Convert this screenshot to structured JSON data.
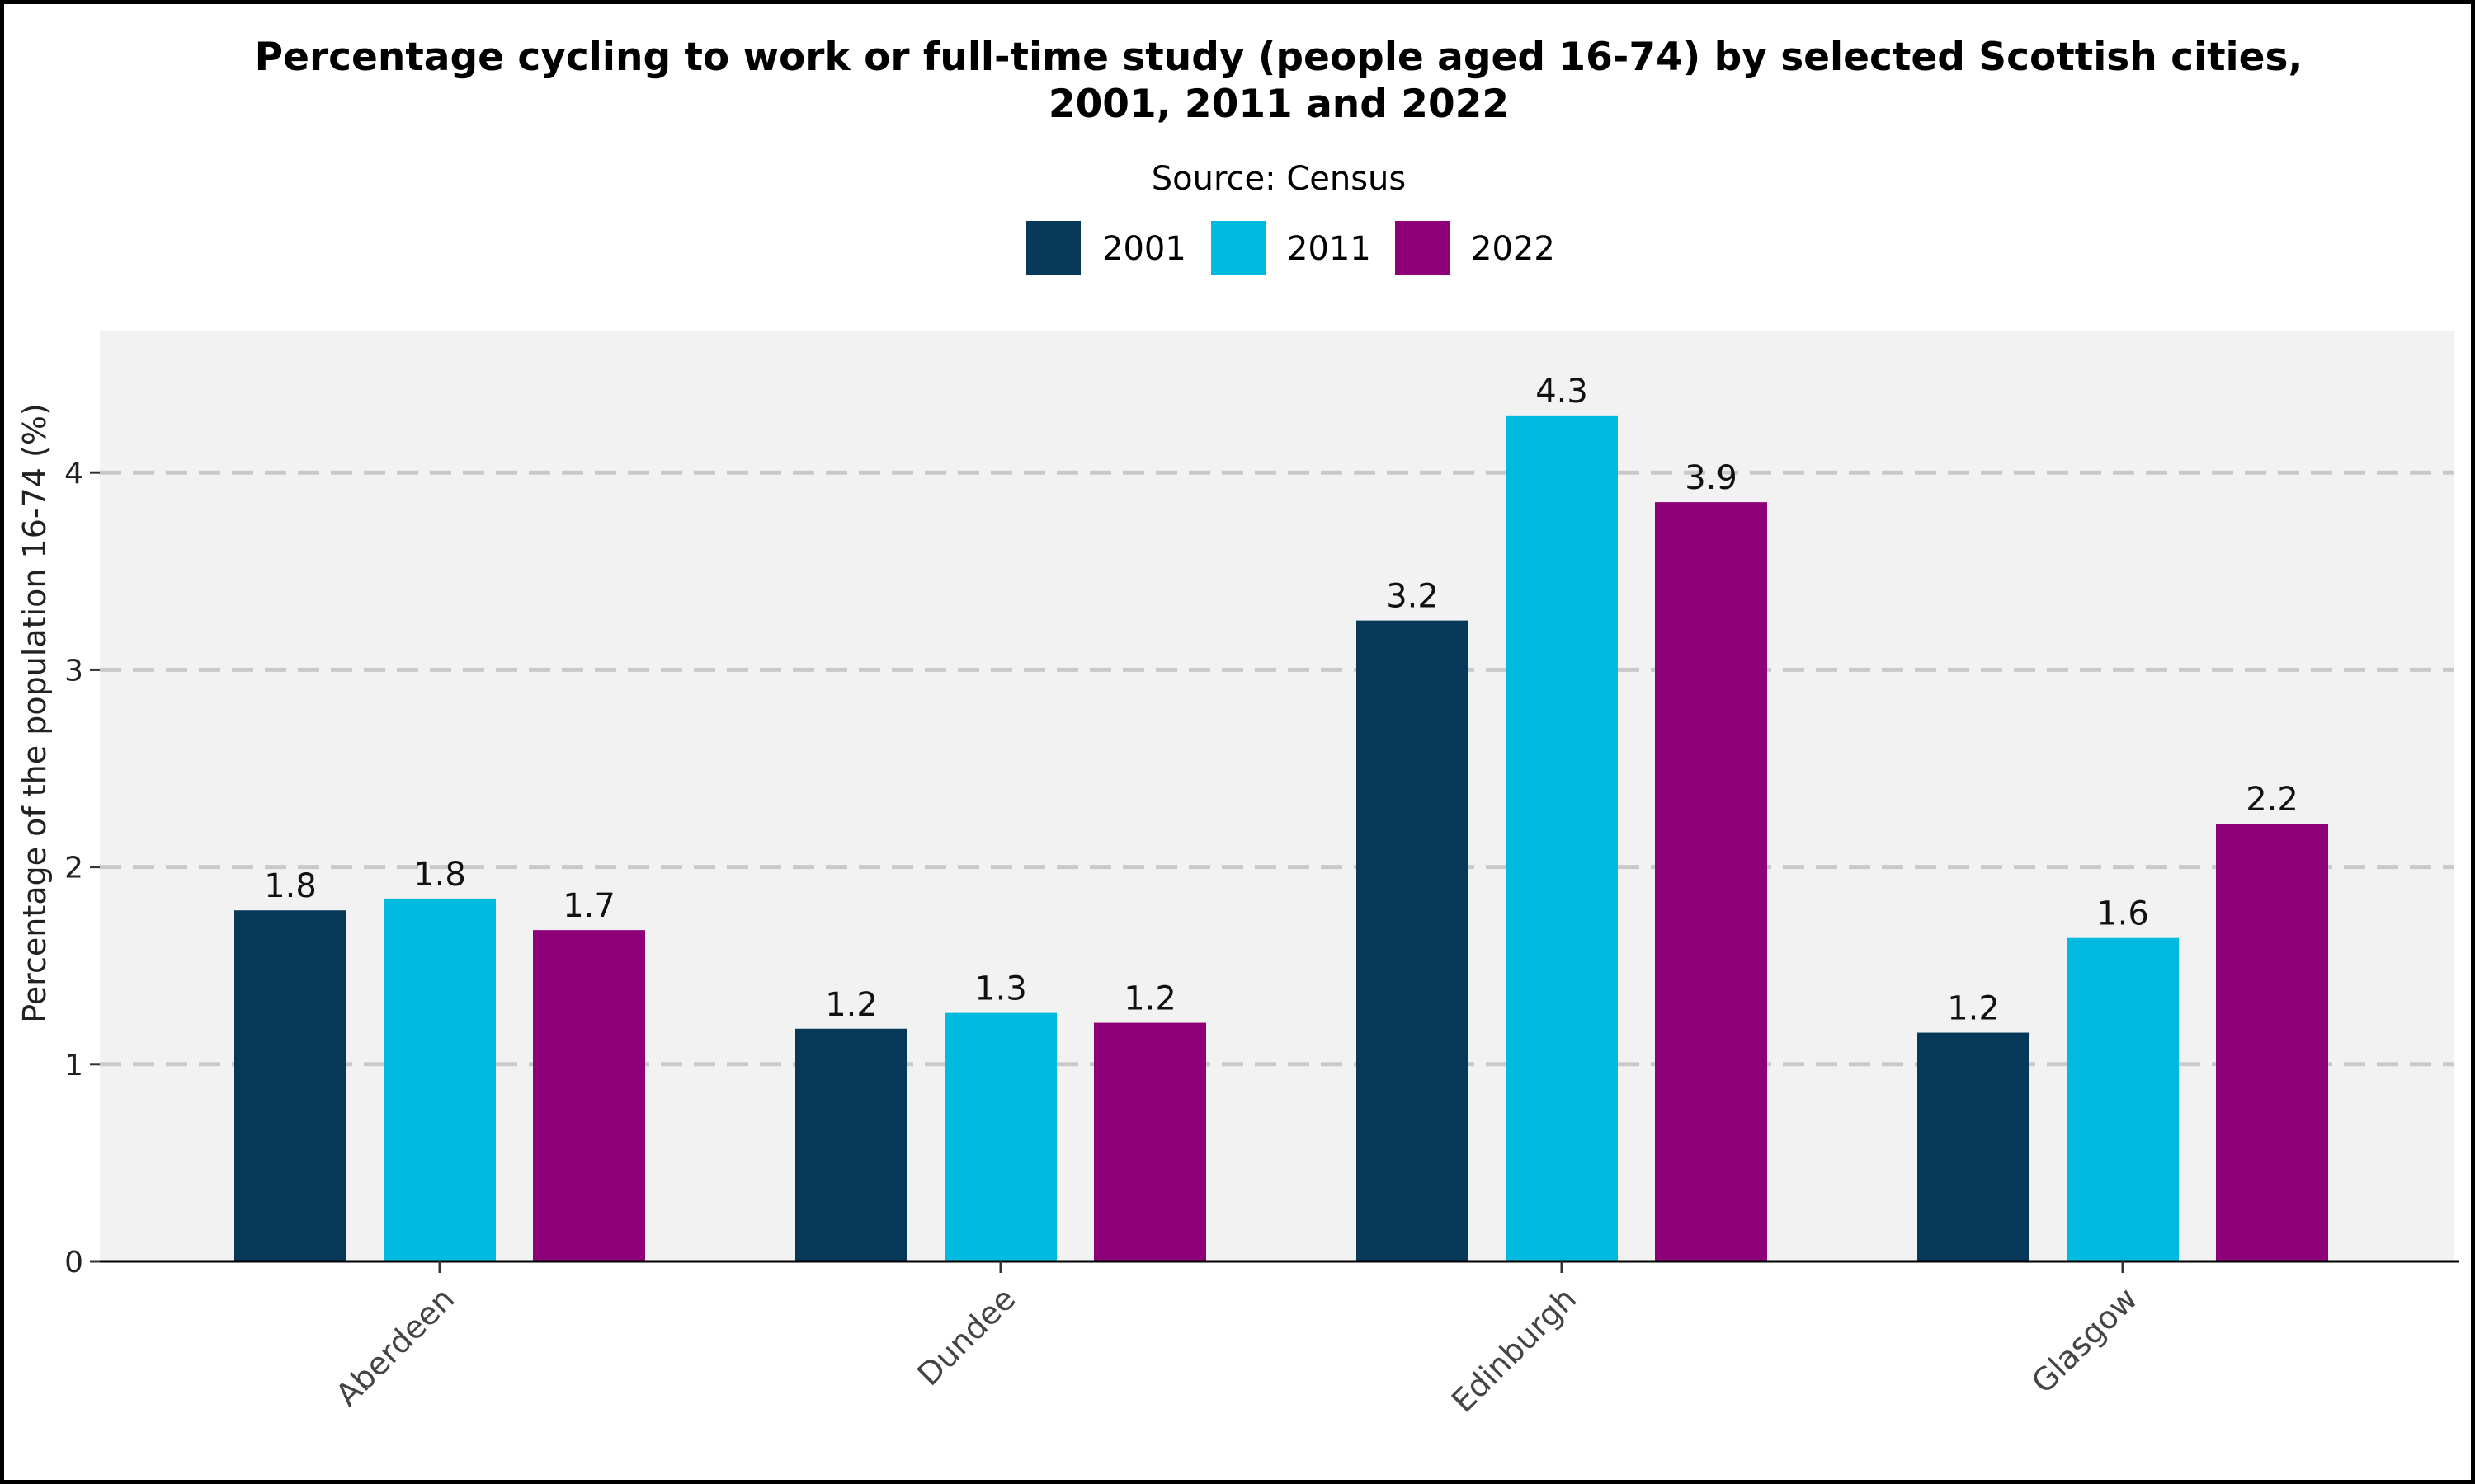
{
  "chart_data": {
    "type": "bar",
    "title_line1": "Percentage cycling to work or full-time study (people aged 16-74) by selected Scottish cities,",
    "title_line2": "2001, 2011 and 2022",
    "subtitle": "Source: Census",
    "xlabel": "",
    "ylabel": "Percentage of the population 16-74 (%)",
    "categories": [
      "Aberdeen",
      "Dundee",
      "Edinburgh",
      "Glasgow"
    ],
    "series": [
      {
        "name": "2001",
        "color": "#06385a",
        "values": [
          1.78,
          1.18,
          3.25,
          1.16
        ],
        "labels": [
          "1.8",
          "1.2",
          "3.2",
          "1.2"
        ]
      },
      {
        "name": "2011",
        "color": "#00bbdf",
        "values": [
          1.84,
          1.26,
          4.29,
          1.64
        ],
        "labels": [
          "1.8",
          "1.3",
          "4.3",
          "1.6"
        ]
      },
      {
        "name": "2022",
        "color": "#8e0077",
        "values": [
          1.68,
          1.21,
          3.85,
          2.22
        ],
        "labels": [
          "1.7",
          "1.2",
          "3.9",
          "2.2"
        ]
      }
    ],
    "ylim": [
      0,
      4.72
    ],
    "yticks": [
      0,
      1,
      2,
      3,
      4
    ],
    "grid": true,
    "legend_position": "top"
  }
}
